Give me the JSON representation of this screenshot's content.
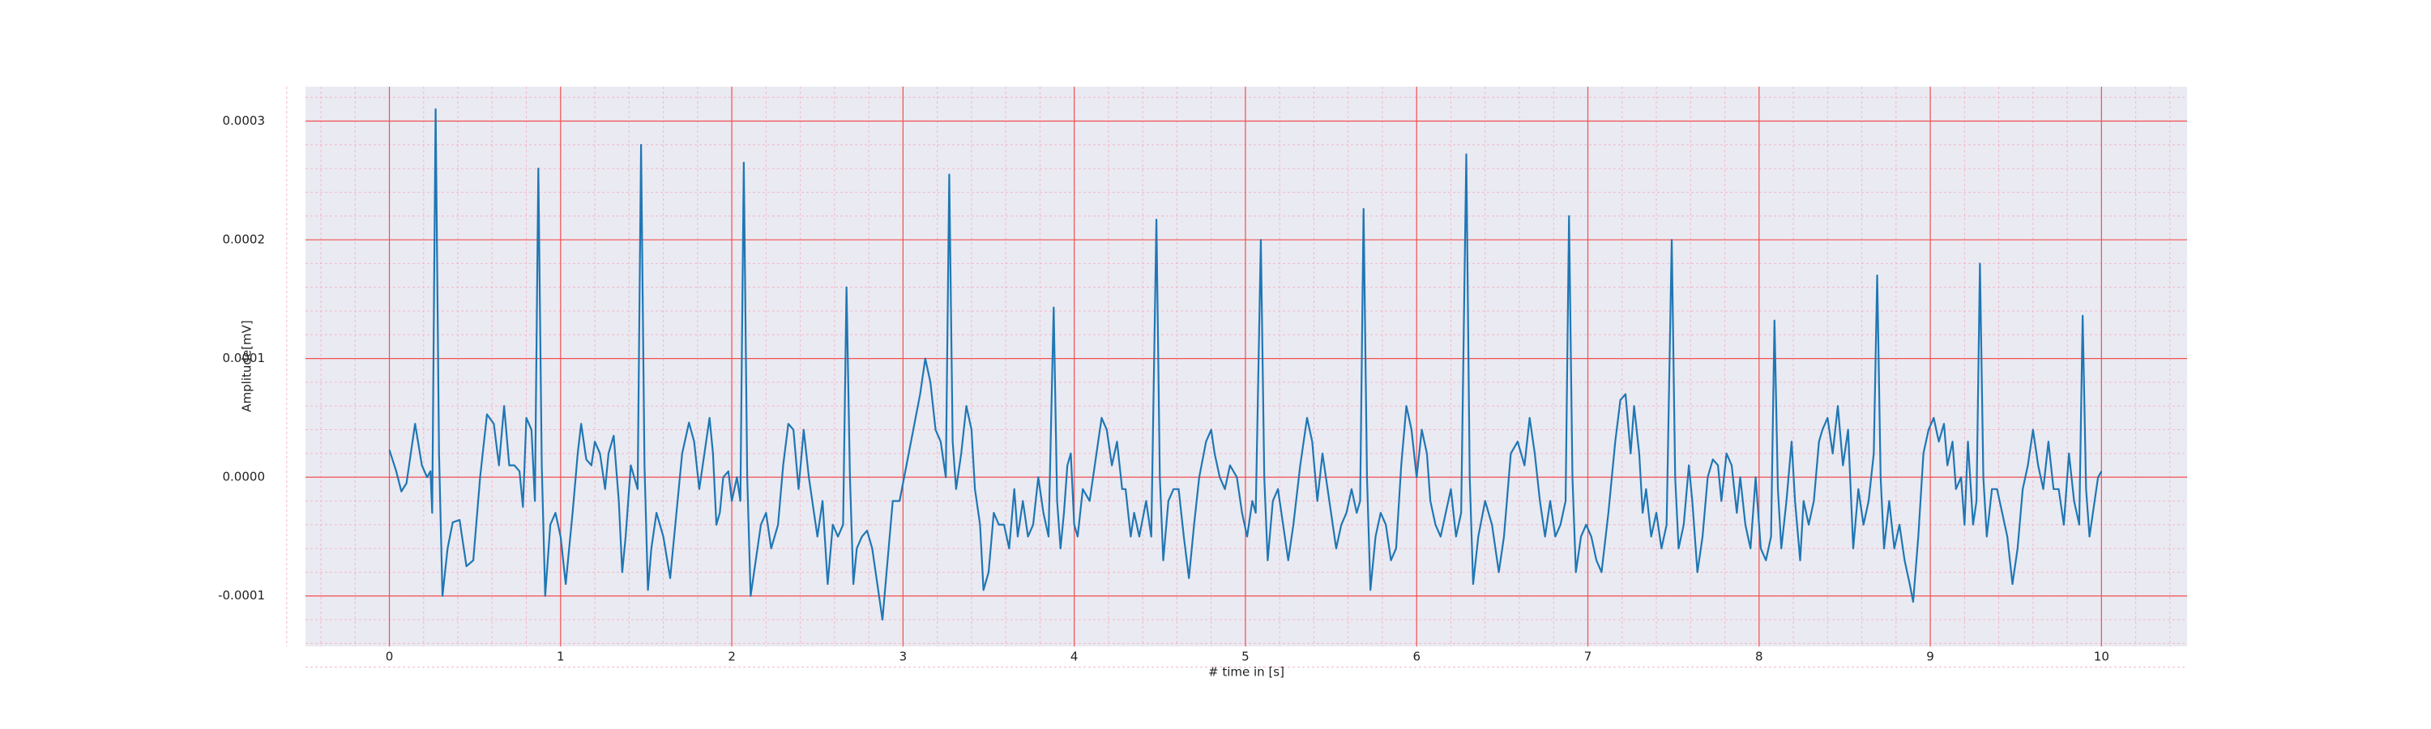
{
  "chart_data": {
    "type": "line",
    "xlabel": "# time in [s]",
    "ylabel": "Amplitude[mV]",
    "color": "#1f77b4",
    "grid": true,
    "minor_grid": true,
    "xlim": [
      -0.49,
      10.5
    ],
    "ylim": [
      -0.0001425,
      0.000329
    ],
    "xticks": [
      0,
      1,
      2,
      3,
      4,
      5,
      6,
      7,
      8,
      9,
      10
    ],
    "yticks": [
      -0.0001,
      {
        "value": 0,
        "label": "0.0000"
      },
      0.0001,
      0.0002,
      0.0003
    ],
    "x": [
      0,
      0.04,
      0.07,
      0.1,
      0.15,
      0.19,
      0.22,
      0.24,
      0.25,
      0.27,
      0.29,
      0.31,
      0.34,
      0.37,
      0.41,
      0.45,
      0.49,
      0.53,
      0.57,
      0.61,
      0.64,
      0.67,
      0.7,
      0.73,
      0.76,
      0.78,
      0.8,
      0.83,
      0.85,
      0.87,
      0.89,
      0.91,
      0.94,
      0.97,
      1.0,
      1.03,
      1.07,
      1.1,
      1.12,
      1.15,
      1.18,
      1.2,
      1.23,
      1.26,
      1.28,
      1.31,
      1.34,
      1.36,
      1.38,
      1.41,
      1.45,
      1.47,
      1.49,
      1.51,
      1.53,
      1.56,
      1.6,
      1.64,
      1.67,
      1.71,
      1.75,
      1.78,
      1.81,
      1.84,
      1.87,
      1.89,
      1.91,
      1.93,
      1.95,
      1.98,
      2.0,
      2.03,
      2.05,
      2.07,
      2.09,
      2.11,
      2.14,
      2.17,
      2.2,
      2.23,
      2.27,
      2.3,
      2.33,
      2.36,
      2.39,
      2.42,
      2.45,
      2.47,
      2.5,
      2.53,
      2.56,
      2.59,
      2.62,
      2.65,
      2.67,
      2.69,
      2.71,
      2.73,
      2.76,
      2.79,
      2.82,
      2.85,
      2.88,
      2.91,
      2.94,
      2.98,
      3.02,
      3.06,
      3.1,
      3.13,
      3.16,
      3.19,
      3.22,
      3.25,
      3.27,
      3.29,
      3.31,
      3.34,
      3.37,
      3.4,
      3.42,
      3.45,
      3.47,
      3.5,
      3.53,
      3.56,
      3.59,
      3.62,
      3.65,
      3.67,
      3.7,
      3.73,
      3.76,
      3.79,
      3.82,
      3.85,
      3.88,
      3.9,
      3.92,
      3.94,
      3.96,
      3.98,
      4.0,
      4.02,
      4.05,
      4.09,
      4.12,
      4.16,
      4.19,
      4.22,
      4.25,
      4.28,
      4.3,
      4.33,
      4.35,
      4.38,
      4.42,
      4.45,
      4.48,
      4.5,
      4.52,
      4.55,
      4.58,
      4.61,
      4.64,
      4.67,
      4.7,
      4.73,
      4.77,
      4.8,
      4.82,
      4.85,
      4.88,
      4.91,
      4.95,
      4.98,
      5.01,
      5.04,
      5.06,
      5.09,
      5.11,
      5.13,
      5.16,
      5.19,
      5.22,
      5.25,
      5.28,
      5.32,
      5.36,
      5.39,
      5.42,
      5.45,
      5.48,
      5.5,
      5.53,
      5.56,
      5.59,
      5.62,
      5.65,
      5.67,
      5.69,
      5.71,
      5.73,
      5.76,
      5.79,
      5.82,
      5.85,
      5.88,
      5.91,
      5.94,
      5.97,
      6.0,
      6.03,
      6.06,
      6.08,
      6.11,
      6.14,
      6.17,
      6.2,
      6.23,
      6.26,
      6.29,
      6.31,
      6.33,
      6.36,
      6.4,
      6.44,
      6.48,
      6.51,
      6.55,
      6.59,
      6.63,
      6.66,
      6.69,
      6.72,
      6.75,
      6.78,
      6.81,
      6.84,
      6.87,
      6.89,
      6.91,
      6.93,
      6.96,
      6.99,
      7.02,
      7.05,
      7.08,
      7.12,
      7.16,
      7.19,
      7.22,
      7.25,
      7.27,
      7.3,
      7.32,
      7.34,
      7.37,
      7.4,
      7.43,
      7.46,
      7.49,
      7.51,
      7.53,
      7.56,
      7.59,
      7.61,
      7.64,
      7.67,
      7.7,
      7.73,
      7.76,
      7.78,
      7.81,
      7.84,
      7.87,
      7.89,
      7.92,
      7.95,
      7.98,
      8.01,
      8.04,
      8.07,
      8.09,
      8.11,
      8.13,
      8.16,
      8.19,
      8.21,
      8.24,
      8.26,
      8.29,
      8.32,
      8.35,
      8.37,
      8.4,
      8.43,
      8.46,
      8.49,
      8.52,
      8.55,
      8.58,
      8.61,
      8.64,
      8.67,
      8.69,
      8.71,
      8.73,
      8.76,
      8.79,
      8.82,
      8.85,
      8.88,
      8.9,
      8.93,
      8.96,
      8.99,
      9.02,
      9.05,
      9.08,
      9.1,
      9.13,
      9.15,
      9.18,
      9.2,
      9.22,
      9.25,
      9.27,
      9.29,
      9.31,
      9.33,
      9.36,
      9.39,
      9.42,
      9.45,
      9.48,
      9.51,
      9.54,
      9.57,
      9.6,
      9.63,
      9.66,
      9.69,
      9.72,
      9.75,
      9.78,
      9.81,
      9.84,
      9.87,
      9.89,
      9.91,
      9.93,
      9.95,
      9.98,
      10.0
    ],
    "values": [
      2.3e-05,
      5e-06,
      -1.2e-05,
      -5e-06,
      4.5e-05,
      1e-05,
      0,
      5e-06,
      -3e-05,
      0.00031,
      2e-05,
      -0.0001,
      -6e-05,
      -3.8e-05,
      -3.6e-05,
      -7.5e-05,
      -7e-05,
      0,
      5.3e-05,
      4.5e-05,
      1e-05,
      6e-05,
      1e-05,
      1e-05,
      5e-06,
      -2.5e-05,
      5e-05,
      4e-05,
      -2e-05,
      0.00026,
      1e-05,
      -0.0001,
      -4e-05,
      -3e-05,
      -5e-05,
      -9e-05,
      -3e-05,
      2e-05,
      4.5e-05,
      1.5e-05,
      1e-05,
      3e-05,
      2e-05,
      -1e-05,
      2e-05,
      3.5e-05,
      -2e-05,
      -8e-05,
      -5e-05,
      1e-05,
      -1e-05,
      0.00028,
      1e-05,
      -9.5e-05,
      -6e-05,
      -3e-05,
      -5e-05,
      -8.5e-05,
      -4e-05,
      2e-05,
      4.6e-05,
      3e-05,
      -1e-05,
      2e-05,
      5e-05,
      2e-05,
      -4e-05,
      -3e-05,
      0,
      5e-06,
      -2e-05,
      0,
      -2e-05,
      0.000265,
      0,
      -0.0001,
      -7e-05,
      -4e-05,
      -3e-05,
      -6e-05,
      -4e-05,
      1e-05,
      4.5e-05,
      4e-05,
      -1e-05,
      4e-05,
      0,
      -2e-05,
      -5e-05,
      -2e-05,
      -9e-05,
      -4e-05,
      -5e-05,
      -4e-05,
      0.00016,
      0,
      -9e-05,
      -6e-05,
      -5e-05,
      -4.5e-05,
      -6e-05,
      -9e-05,
      -0.00012,
      -7e-05,
      -2e-05,
      -2e-05,
      1e-05,
      4e-05,
      7e-05,
      0.0001,
      8e-05,
      4e-05,
      3e-05,
      0,
      0.000255,
      3e-05,
      -1e-05,
      2e-05,
      6e-05,
      4e-05,
      -1e-05,
      -4e-05,
      -9.5e-05,
      -8e-05,
      -3e-05,
      -4e-05,
      -4e-05,
      -6e-05,
      -1e-05,
      -5e-05,
      -2e-05,
      -5e-05,
      -4e-05,
      0,
      -3e-05,
      -5e-05,
      0.000143,
      -2e-05,
      -6e-05,
      -3e-05,
      1e-05,
      2e-05,
      -4e-05,
      -5e-05,
      -1e-05,
      -2e-05,
      1e-05,
      5e-05,
      4e-05,
      1e-05,
      3e-05,
      -1e-05,
      -1e-05,
      -5e-05,
      -3e-05,
      -5e-05,
      -2e-05,
      -5e-05,
      0.000217,
      0,
      -7e-05,
      -2e-05,
      -1e-05,
      -1e-05,
      -5e-05,
      -8.5e-05,
      -4e-05,
      0,
      3e-05,
      4e-05,
      2e-05,
      0,
      -1e-05,
      1e-05,
      0,
      -3e-05,
      -5e-05,
      -2e-05,
      -3e-05,
      0.0002,
      0,
      -7e-05,
      -2e-05,
      -1e-05,
      -4e-05,
      -7e-05,
      -4e-05,
      1e-05,
      5e-05,
      3e-05,
      -2e-05,
      2e-05,
      -1e-05,
      -3e-05,
      -6e-05,
      -4e-05,
      -3e-05,
      -1e-05,
      -3e-05,
      -2e-05,
      0.000226,
      0,
      -9.5e-05,
      -5e-05,
      -3e-05,
      -4e-05,
      -7e-05,
      -6e-05,
      1e-05,
      6e-05,
      4e-05,
      0,
      4e-05,
      2e-05,
      -2e-05,
      -4e-05,
      -5e-05,
      -3e-05,
      -1e-05,
      -5e-05,
      -3e-05,
      0.000272,
      0,
      -9e-05,
      -5e-05,
      -2e-05,
      -4e-05,
      -8e-05,
      -5e-05,
      2e-05,
      3e-05,
      1e-05,
      5e-05,
      2e-05,
      -2e-05,
      -5e-05,
      -2e-05,
      -5e-05,
      -4e-05,
      -2e-05,
      0.00022,
      0,
      -8e-05,
      -5e-05,
      -4e-05,
      -5e-05,
      -7e-05,
      -8e-05,
      -3e-05,
      3e-05,
      6.5e-05,
      7e-05,
      2e-05,
      6e-05,
      2e-05,
      -3e-05,
      -1e-05,
      -5e-05,
      -3e-05,
      -6e-05,
      -4e-05,
      0.0002,
      0,
      -6e-05,
      -4e-05,
      1e-05,
      -2e-05,
      -8e-05,
      -5e-05,
      0,
      1.5e-05,
      1e-05,
      -2e-05,
      2e-05,
      1e-05,
      -3e-05,
      0,
      -4e-05,
      -6e-05,
      0,
      -6e-05,
      -7e-05,
      -5e-05,
      0.000132,
      -1e-05,
      -6e-05,
      -2e-05,
      3e-05,
      -2e-05,
      -7e-05,
      -2e-05,
      -4e-05,
      -2e-05,
      3e-05,
      4e-05,
      5e-05,
      2e-05,
      6e-05,
      1e-05,
      4e-05,
      -6e-05,
      -1e-05,
      -4e-05,
      -2e-05,
      2e-05,
      0.00017,
      0,
      -6e-05,
      -2e-05,
      -6e-05,
      -4e-05,
      -7e-05,
      -9e-05,
      -0.000105,
      -5e-05,
      2e-05,
      4e-05,
      5e-05,
      3e-05,
      4.5e-05,
      1e-05,
      3e-05,
      -1e-05,
      0,
      -4e-05,
      3e-05,
      -4e-05,
      -2e-05,
      0.00018,
      0,
      -5e-05,
      -1e-05,
      -1e-05,
      -3e-05,
      -5e-05,
      -9e-05,
      -6e-05,
      -1e-05,
      1e-05,
      4e-05,
      1e-05,
      -1e-05,
      3e-05,
      -1e-05,
      -1e-05,
      -4e-05,
      2e-05,
      -2e-05,
      -4e-05,
      0.000136,
      -1e-05,
      -5e-05,
      -3e-05,
      0,
      5e-06
    ]
  }
}
